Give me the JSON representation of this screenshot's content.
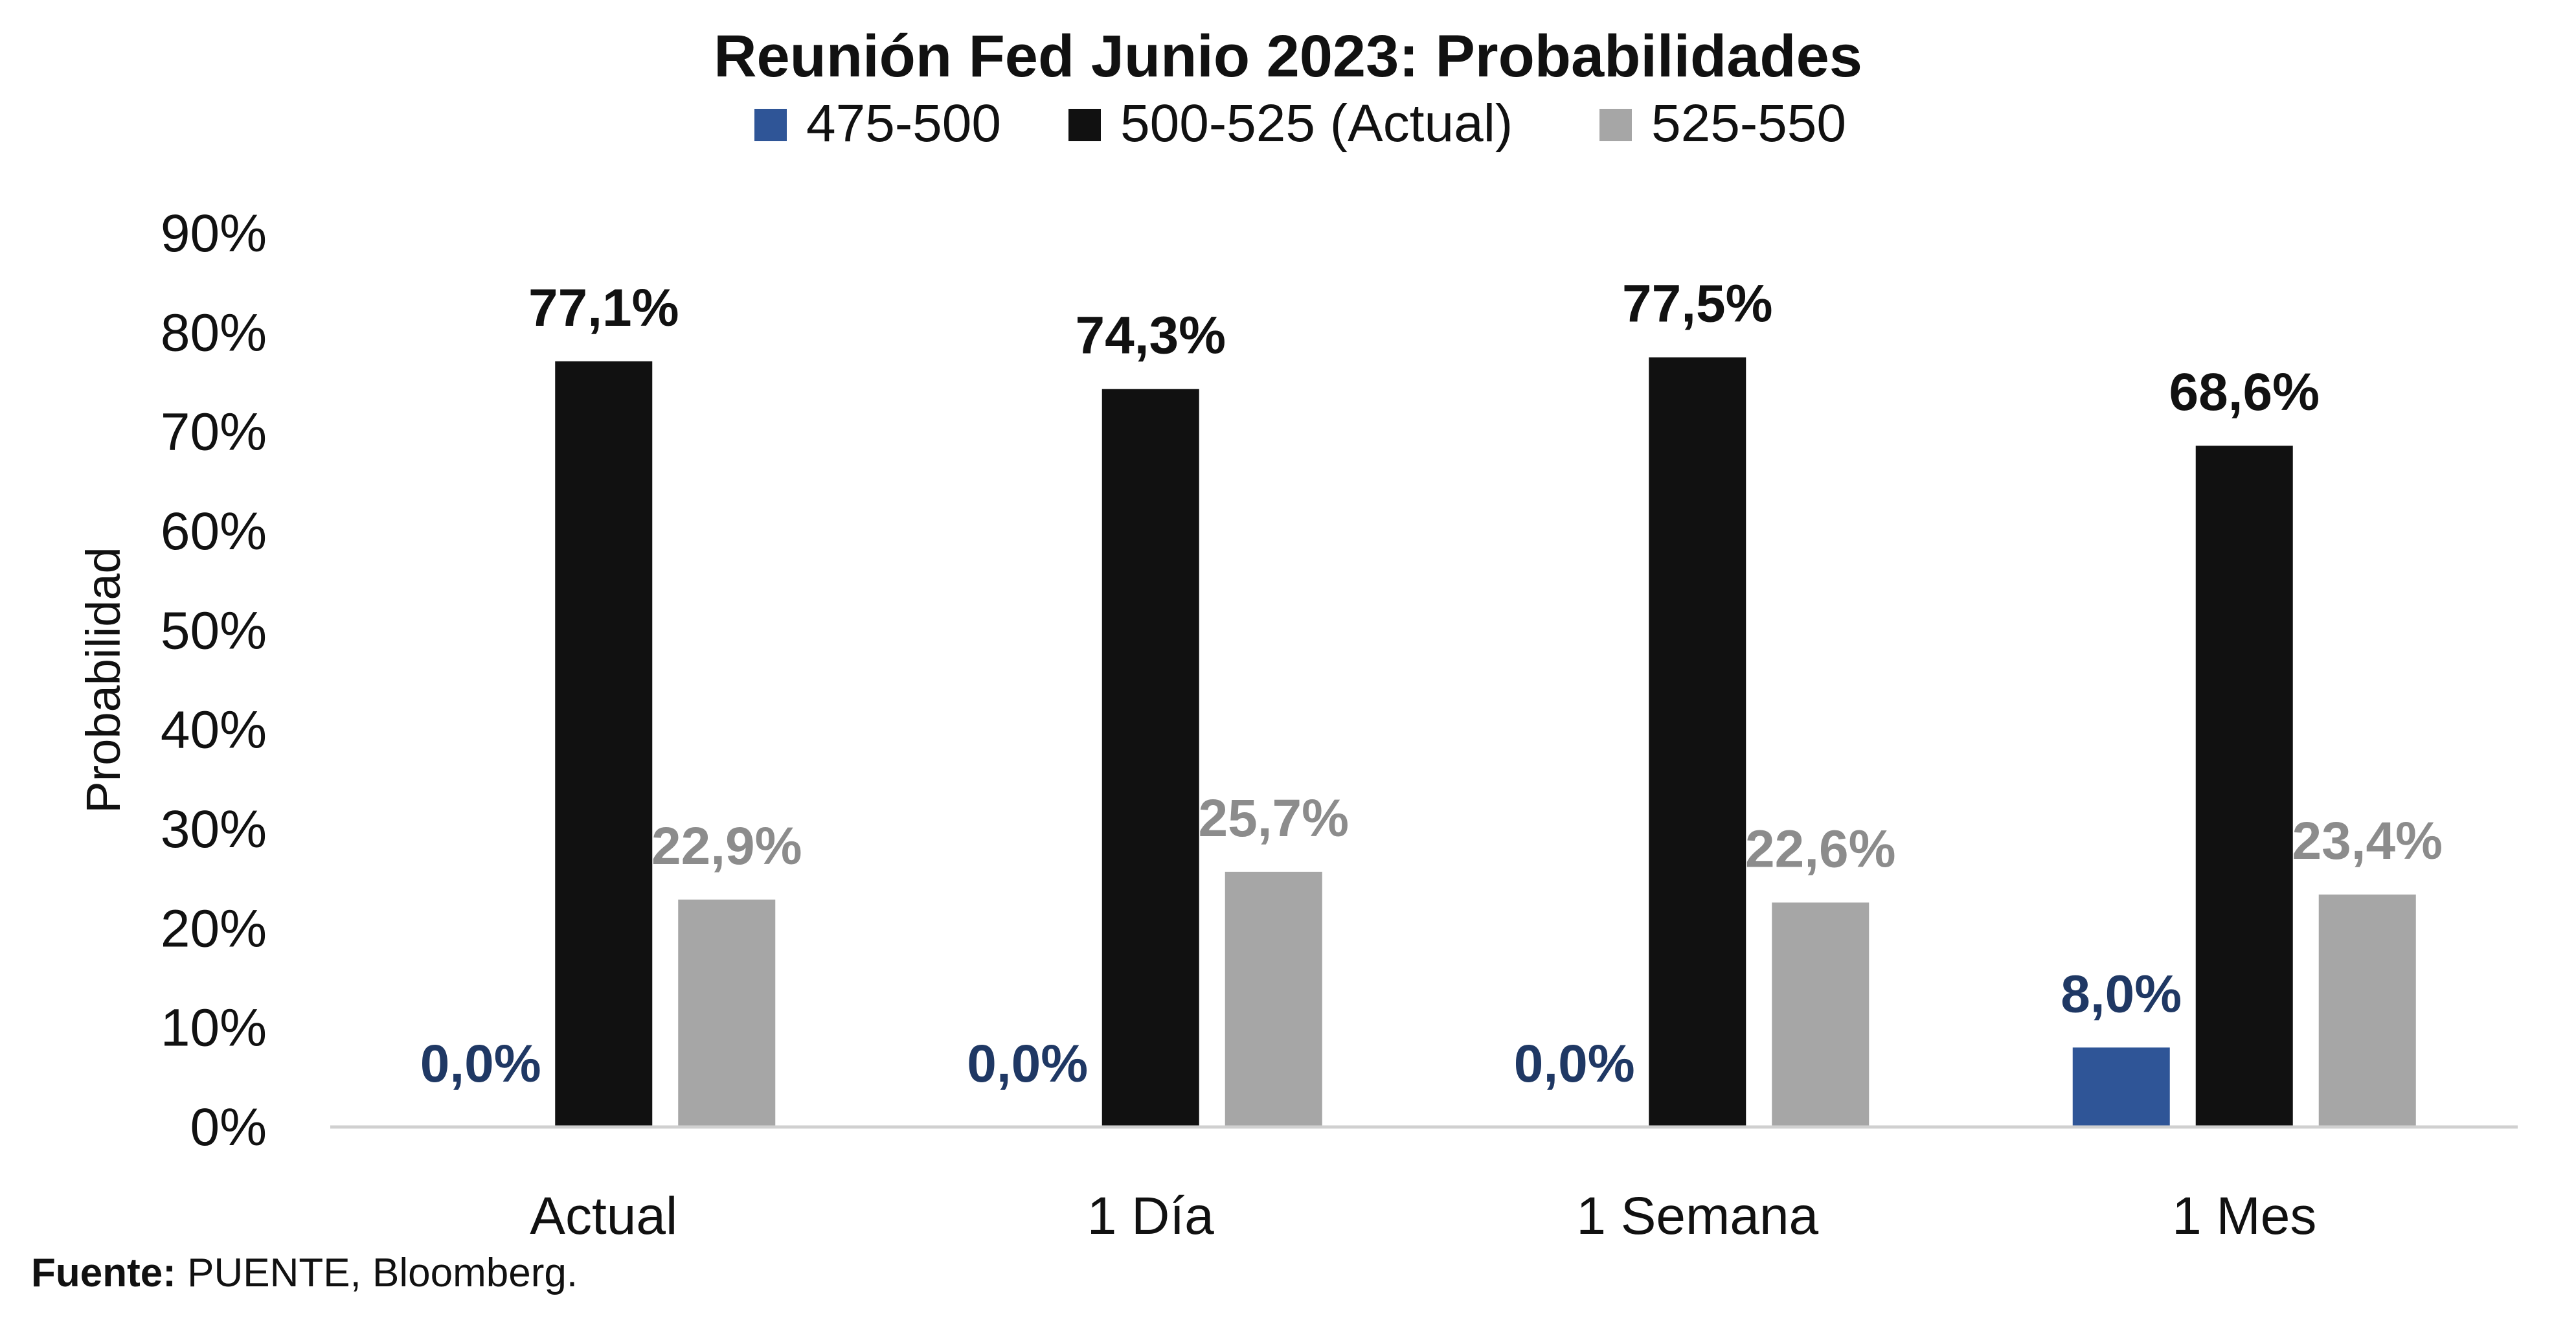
{
  "chart_data": {
    "type": "bar",
    "title": "Reunión Fed Junio 2023: Probabilidades",
    "ylabel": "Probabilidad",
    "xlabel": "",
    "categories": [
      "Actual",
      "1 Día",
      "1 Semana",
      "1 Mes"
    ],
    "ylim": [
      0,
      90
    ],
    "yticks": [
      "0%",
      "10%",
      "20%",
      "30%",
      "40%",
      "50%",
      "60%",
      "70%",
      "80%",
      "90%"
    ],
    "legend_position": "top-center",
    "grid": false,
    "series": [
      {
        "name": "475-500",
        "color": "#2f5597",
        "label_color": "#1f3864",
        "values": [
          0.0,
          0.0,
          0.0,
          8.0
        ],
        "labels": [
          "0,0%",
          "0,0%",
          "0,0%",
          "8,0%"
        ]
      },
      {
        "name": "500-525 (Actual)",
        "color": "#111111",
        "label_color": "#111111",
        "values": [
          77.1,
          74.3,
          77.5,
          68.6
        ],
        "labels": [
          "77,1%",
          "74,3%",
          "77,5%",
          "68,6%"
        ]
      },
      {
        "name": "525-550",
        "color": "#a6a6a6",
        "label_color": "#8c8c8c",
        "values": [
          22.9,
          25.7,
          22.6,
          23.4
        ],
        "labels": [
          "22,9%",
          "25,7%",
          "22,6%",
          "23,4%"
        ]
      }
    ]
  },
  "source": {
    "label": "Fuente:",
    "text": " PUENTE, Bloomberg."
  }
}
